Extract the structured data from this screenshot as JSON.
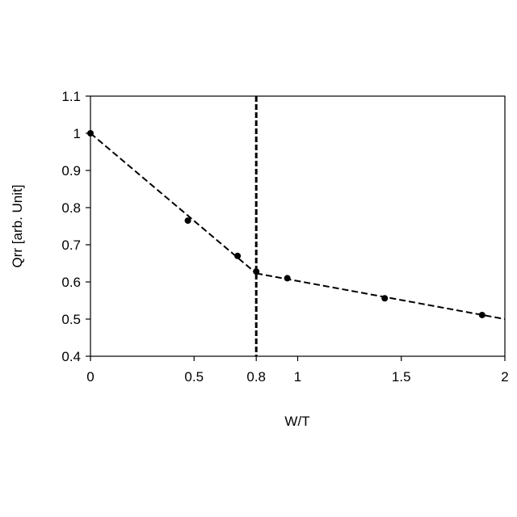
{
  "chart_data": {
    "type": "scatter",
    "title": "",
    "xlabel": "W/T",
    "ylabel": "Qrr [arb. Unit]",
    "xlim": [
      0,
      2
    ],
    "ylim": [
      0.4,
      1.1
    ],
    "x_ticks": [
      "0",
      "0.5",
      "0.8",
      "1",
      "1.5",
      "2"
    ],
    "x_tick_values": [
      0,
      0.5,
      0.8,
      1,
      1.5,
      2
    ],
    "y_ticks": [
      "0.4",
      "0.5",
      "0.6",
      "0.7",
      "0.8",
      "0.9",
      "1",
      "1.1"
    ],
    "y_tick_values": [
      0.4,
      0.5,
      0.6,
      0.7,
      0.8,
      0.9,
      1.0,
      1.1
    ],
    "grid": false,
    "legend": "none",
    "series": [
      {
        "kind": "points",
        "x": [
          0,
          0.47,
          0.71,
          0.8,
          0.95,
          1.42,
          1.89
        ],
        "y": [
          1.0,
          0.765,
          0.67,
          0.628,
          0.61,
          0.556,
          0.511
        ]
      },
      {
        "kind": "dashed-fit",
        "x": [
          0,
          0.8
        ],
        "y": [
          1.0,
          0.623
        ]
      },
      {
        "kind": "dashed-fit",
        "x": [
          0.8,
          2.0
        ],
        "y": [
          0.623,
          0.5
        ]
      }
    ],
    "reference_line": {
      "orientation": "vertical",
      "x": 0.8,
      "style": "dashed"
    },
    "colors": {
      "points": "#000000",
      "lines": "#000000",
      "axes": "#000000"
    }
  }
}
